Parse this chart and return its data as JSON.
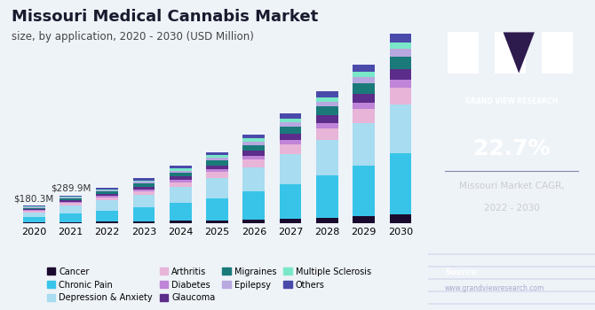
{
  "title": "Missouri Medical Cannabis Market",
  "subtitle": "size, by application, 2020 - 2030 (USD Million)",
  "years": [
    2020,
    2021,
    2022,
    2023,
    2024,
    2025,
    2026,
    2027,
    2028,
    2029,
    2030
  ],
  "annotations": [
    {
      "year": 2020,
      "text": "$180.3M"
    },
    {
      "year": 2021,
      "text": "$289.9M"
    }
  ],
  "segments": {
    "Cancer": [
      8,
      12,
      16,
      20,
      26,
      32,
      40,
      50,
      60,
      72,
      88
    ],
    "Chronic Pain": [
      55,
      90,
      115,
      145,
      185,
      230,
      290,
      360,
      440,
      530,
      640
    ],
    "Depression & Anxiety": [
      50,
      82,
      105,
      130,
      165,
      205,
      255,
      310,
      370,
      440,
      510
    ],
    "Arthritis": [
      15,
      25,
      32,
      40,
      52,
      65,
      80,
      100,
      120,
      145,
      175
    ],
    "Diabetes": [
      8,
      12,
      16,
      20,
      25,
      31,
      38,
      47,
      57,
      68,
      82
    ],
    "Glaucoma": [
      10,
      16,
      20,
      26,
      33,
      41,
      51,
      63,
      76,
      91,
      110
    ],
    "Migraines": [
      12,
      20,
      25,
      31,
      40,
      50,
      62,
      77,
      92,
      110,
      132
    ],
    "Epilepsy": [
      7,
      11,
      14,
      18,
      23,
      29,
      36,
      44,
      53,
      64,
      77
    ],
    "Multiple Sclerosis": [
      6,
      9,
      12,
      15,
      19,
      24,
      30,
      37,
      45,
      54,
      65
    ],
    "Others": [
      9,
      13,
      17,
      22,
      28,
      35,
      43,
      53,
      64,
      77,
      92
    ]
  },
  "colors": {
    "Cancer": "#1a0a2e",
    "Chronic Pain": "#38c4e8",
    "Depression & Anxiety": "#a8dcf0",
    "Arthritis": "#e8b4d8",
    "Diabetes": "#c084d8",
    "Glaucoma": "#5c2d8a",
    "Migraines": "#1a7a7a",
    "Epilepsy": "#b8a8e0",
    "Multiple Sclerosis": "#7ae8c8",
    "Others": "#4a4aaa"
  },
  "bg_color": "#eef3f8",
  "right_panel_color": "#2d1b4e",
  "ylim": [
    0,
    2100
  ]
}
